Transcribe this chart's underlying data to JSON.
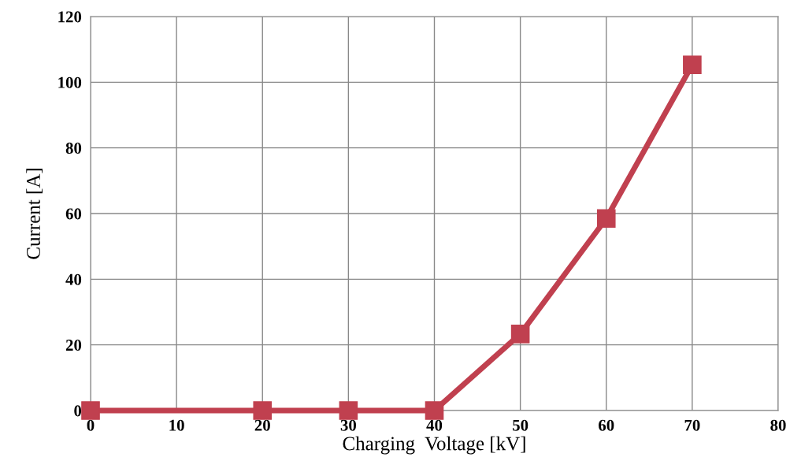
{
  "chart_data": {
    "type": "line",
    "xlabel": "Charging  Voltage [kV]",
    "ylabel": "Current [A]",
    "x": [
      0,
      20,
      30,
      40,
      50,
      60,
      70
    ],
    "series": [
      {
        "color": "#c0404f",
        "values": [
          0,
          0,
          0,
          0,
          23.3,
          58.5,
          105.3
        ]
      }
    ],
    "xlim": [
      0,
      80
    ],
    "xticks": [
      0,
      10,
      20,
      30,
      40,
      50,
      60,
      70,
      80
    ],
    "ylim": [
      0,
      120
    ],
    "yticks": [
      0,
      20,
      40,
      60,
      80,
      100,
      120
    ],
    "grid": true,
    "marker": "square",
    "line_style": "solid"
  }
}
